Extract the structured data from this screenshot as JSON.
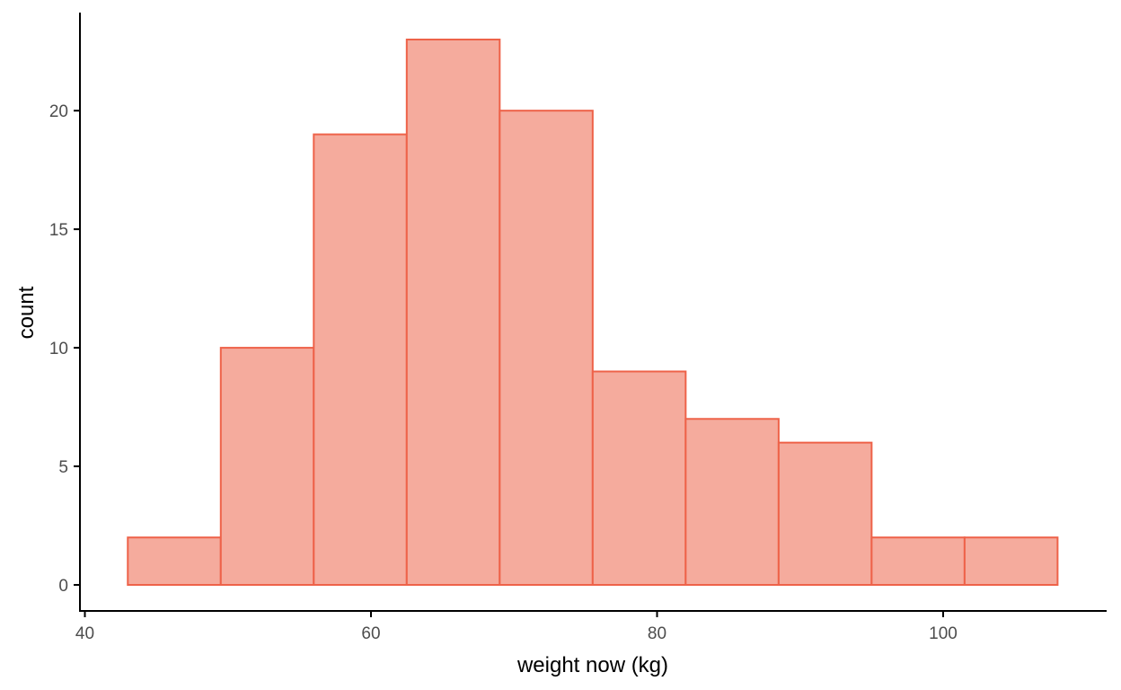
{
  "chart_data": {
    "type": "bar",
    "subtype": "histogram",
    "xlabel": "weight now (kg)",
    "ylabel": "count",
    "xlim": [
      40,
      112.5
    ],
    "ylim": [
      0,
      23
    ],
    "bin_width": 6.5,
    "bins": [
      {
        "start": 43,
        "end": 49.5,
        "count": 2
      },
      {
        "start": 49.5,
        "end": 56,
        "count": 10
      },
      {
        "start": 56,
        "end": 62.5,
        "count": 19
      },
      {
        "start": 62.5,
        "end": 69,
        "count": 23
      },
      {
        "start": 69,
        "end": 75.5,
        "count": 20
      },
      {
        "start": 75.5,
        "end": 82,
        "count": 9
      },
      {
        "start": 82,
        "end": 88.5,
        "count": 7
      },
      {
        "start": 88.5,
        "end": 95,
        "count": 6
      },
      {
        "start": 95,
        "end": 101.5,
        "count": 2
      },
      {
        "start": 101.5,
        "end": 108,
        "count": 2
      }
    ],
    "x_ticks": [
      40,
      60,
      80,
      100
    ],
    "y_ticks": [
      0,
      5,
      10,
      15,
      20
    ],
    "colors": {
      "bar_fill": "#f5ab9d",
      "bar_stroke": "#ee6249",
      "axis": "#000000",
      "tick_text": "#4d4d4d"
    },
    "grid": false,
    "legend": "none"
  }
}
